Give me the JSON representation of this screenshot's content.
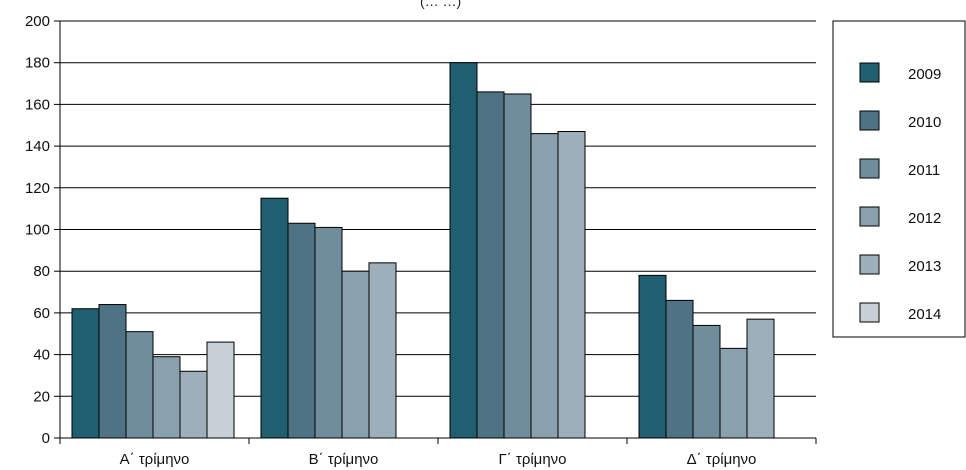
{
  "chart_data": {
    "type": "bar",
    "title_fragment": "(… …)",
    "categories": [
      "Α΄ τρίμηνο",
      "Β΄ τρίμηνο",
      "Γ΄ τρίμηνο",
      "Δ΄ τρίμηνο"
    ],
    "series": [
      {
        "name": "2009",
        "color": "#1f5f6f",
        "values": [
          62,
          115,
          180,
          78
        ]
      },
      {
        "name": "2010",
        "color": "#4e7385",
        "values": [
          64,
          103,
          166,
          66
        ]
      },
      {
        "name": "2011",
        "color": "#6f8d9b",
        "values": [
          51,
          101,
          165,
          54
        ]
      },
      {
        "name": "2012",
        "color": "#8aa1ad",
        "values": [
          39,
          80,
          146,
          43
        ]
      },
      {
        "name": "2013",
        "color": "#9dafba",
        "values": [
          32,
          84,
          147,
          57
        ]
      },
      {
        "name": "2014",
        "color": "#c8d0d6",
        "values": [
          46,
          null,
          null,
          null
        ]
      }
    ],
    "yticks": [
      0,
      20,
      40,
      60,
      80,
      100,
      120,
      140,
      160,
      180,
      200
    ],
    "ylim": [
      0,
      200
    ],
    "grid": true,
    "legend_position": "right"
  }
}
